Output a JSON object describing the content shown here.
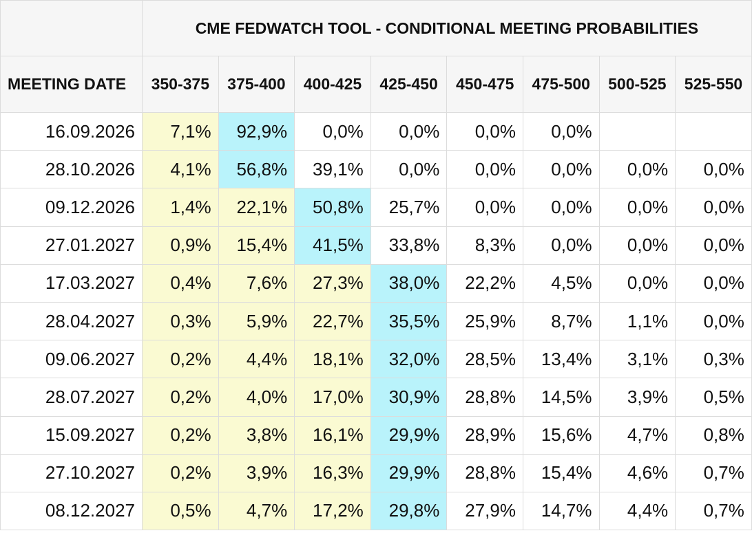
{
  "chart_data": {
    "type": "table",
    "title": "CME FEDWATCH TOOL - CONDITIONAL MEETING PROBABILITIES",
    "first_column_header": "MEETING DATE",
    "columns": [
      "350-375",
      "375-400",
      "400-425",
      "425-450",
      "450-475",
      "475-500",
      "500-525",
      "525-550"
    ],
    "rows": [
      {
        "date": "16.09.2026",
        "values": [
          "7,1%",
          "92,9%",
          "0,0%",
          "0,0%",
          "0,0%",
          "0,0%",
          "",
          ""
        ],
        "peak": 1
      },
      {
        "date": "28.10.2026",
        "values": [
          "4,1%",
          "56,8%",
          "39,1%",
          "0,0%",
          "0,0%",
          "0,0%",
          "0,0%",
          "0,0%"
        ],
        "peak": 1
      },
      {
        "date": "09.12.2026",
        "values": [
          "1,4%",
          "22,1%",
          "50,8%",
          "25,7%",
          "0,0%",
          "0,0%",
          "0,0%",
          "0,0%"
        ],
        "peak": 2
      },
      {
        "date": "27.01.2027",
        "values": [
          "0,9%",
          "15,4%",
          "41,5%",
          "33,8%",
          "8,3%",
          "0,0%",
          "0,0%",
          "0,0%"
        ],
        "peak": 2
      },
      {
        "date": "17.03.2027",
        "values": [
          "0,4%",
          "7,6%",
          "27,3%",
          "38,0%",
          "22,2%",
          "4,5%",
          "0,0%",
          "0,0%"
        ],
        "peak": 3
      },
      {
        "date": "28.04.2027",
        "values": [
          "0,3%",
          "5,9%",
          "22,7%",
          "35,5%",
          "25,9%",
          "8,7%",
          "1,1%",
          "0,0%"
        ],
        "peak": 3
      },
      {
        "date": "09.06.2027",
        "values": [
          "0,2%",
          "4,4%",
          "18,1%",
          "32,0%",
          "28,5%",
          "13,4%",
          "3,1%",
          "0,3%"
        ],
        "peak": 3
      },
      {
        "date": "28.07.2027",
        "values": [
          "0,2%",
          "4,0%",
          "17,0%",
          "30,9%",
          "28,8%",
          "14,5%",
          "3,9%",
          "0,5%"
        ],
        "peak": 3
      },
      {
        "date": "15.09.2027",
        "values": [
          "0,2%",
          "3,8%",
          "16,1%",
          "29,9%",
          "28,9%",
          "15,6%",
          "4,7%",
          "0,8%"
        ],
        "peak": 3
      },
      {
        "date": "27.10.2027",
        "values": [
          "0,2%",
          "3,9%",
          "16,3%",
          "29,9%",
          "28,8%",
          "15,4%",
          "4,6%",
          "0,7%"
        ],
        "peak": 3
      },
      {
        "date": "08.12.2027",
        "values": [
          "0,5%",
          "4,7%",
          "17,2%",
          "29,8%",
          "27,9%",
          "14,7%",
          "4,4%",
          "0,7%"
        ],
        "peak": 3
      }
    ]
  },
  "colors": {
    "peak_cell": "#b9f3fb",
    "below_peak_cell": "#fafad2",
    "header_background": "#f6f6f6",
    "grid": "#dcdcdc"
  }
}
